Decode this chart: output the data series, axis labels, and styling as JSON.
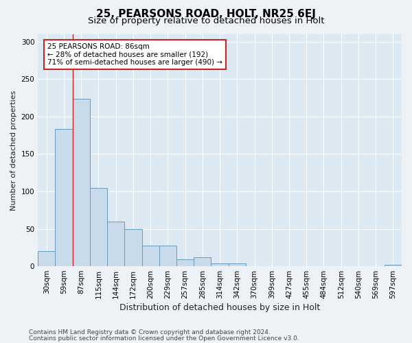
{
  "title1": "25, PEARSONS ROAD, HOLT, NR25 6EJ",
  "title2": "Size of property relative to detached houses in Holt",
  "xlabel": "Distribution of detached houses by size in Holt",
  "ylabel": "Number of detached properties",
  "categories": [
    "30sqm",
    "59sqm",
    "87sqm",
    "115sqm",
    "144sqm",
    "172sqm",
    "200sqm",
    "229sqm",
    "257sqm",
    "285sqm",
    "314sqm",
    "342sqm",
    "370sqm",
    "399sqm",
    "427sqm",
    "455sqm",
    "484sqm",
    "512sqm",
    "540sqm",
    "569sqm",
    "597sqm"
  ],
  "values": [
    20,
    183,
    224,
    105,
    60,
    50,
    28,
    28,
    9,
    12,
    4,
    4,
    0,
    0,
    0,
    0,
    0,
    0,
    0,
    0,
    2
  ],
  "bar_color": "#c9daea",
  "bar_edge_color": "#6699bb",
  "vline_x": 1.5,
  "annotation_line1": "25 PEARSONS ROAD: 86sqm",
  "annotation_line2": "← 28% of detached houses are smaller (192)",
  "annotation_line3": "71% of semi-detached houses are larger (490) →",
  "annotation_box_color": "#ffffff",
  "annotation_box_edge": "#cc2222",
  "ylim": [
    0,
    310
  ],
  "yticks": [
    0,
    50,
    100,
    150,
    200,
    250,
    300
  ],
  "footer1": "Contains HM Land Registry data © Crown copyright and database right 2024.",
  "footer2": "Contains public sector information licensed under the Open Government Licence v3.0.",
  "bg_color": "#edf2f7",
  "plot_bg_color": "#dce8f2",
  "title1_fontsize": 11,
  "title2_fontsize": 9.5,
  "xlabel_fontsize": 9,
  "ylabel_fontsize": 8,
  "tick_fontsize": 7.5,
  "annotation_fontsize": 7.5,
  "footer_fontsize": 6.5,
  "grid_color": "#ffffff",
  "vline_color": "#cc2222",
  "axis_label_color": "#222222"
}
